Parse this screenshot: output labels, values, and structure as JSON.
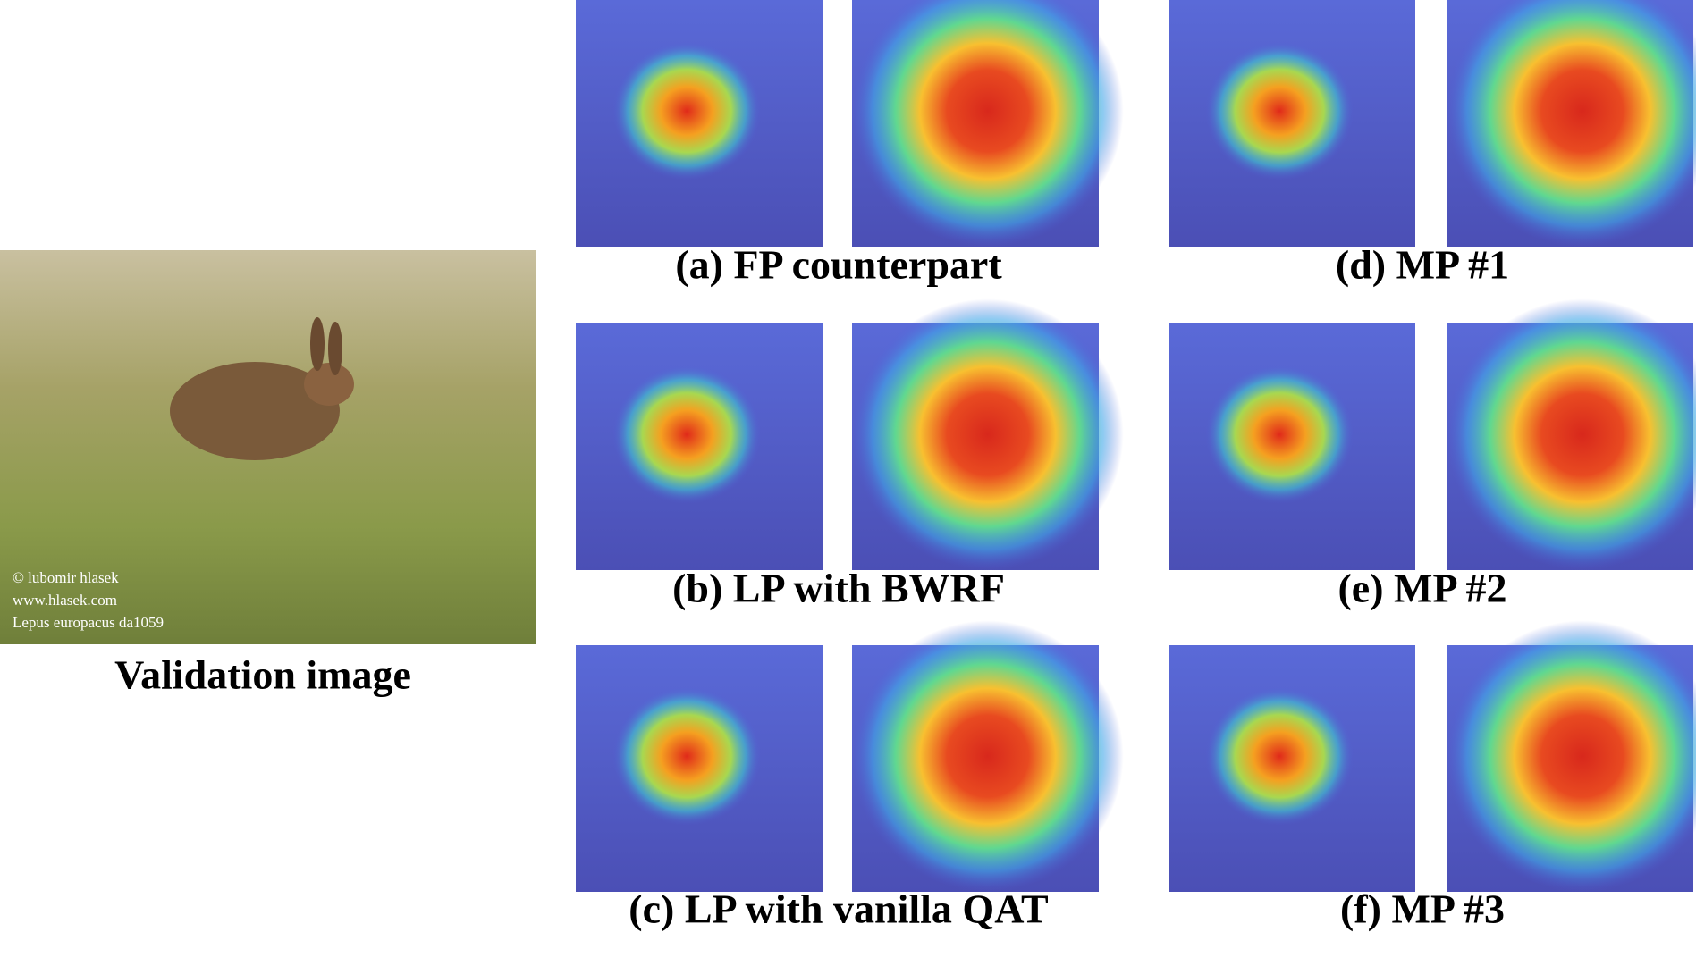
{
  "validation": {
    "caption": "Validation image",
    "watermark": [
      "© lubomir hlasek",
      "www.hlasek.com",
      "Lepus europacus da1059"
    ]
  },
  "panels": [
    {
      "caption": "(a) FP counterpart"
    },
    {
      "caption": "(b) LP  with BWRF"
    },
    {
      "caption": "(c) LP with vanilla QAT"
    },
    {
      "caption": "(d) MP #1"
    },
    {
      "caption": "(e) MP #2"
    },
    {
      "caption": "(f) MP #3"
    }
  ]
}
